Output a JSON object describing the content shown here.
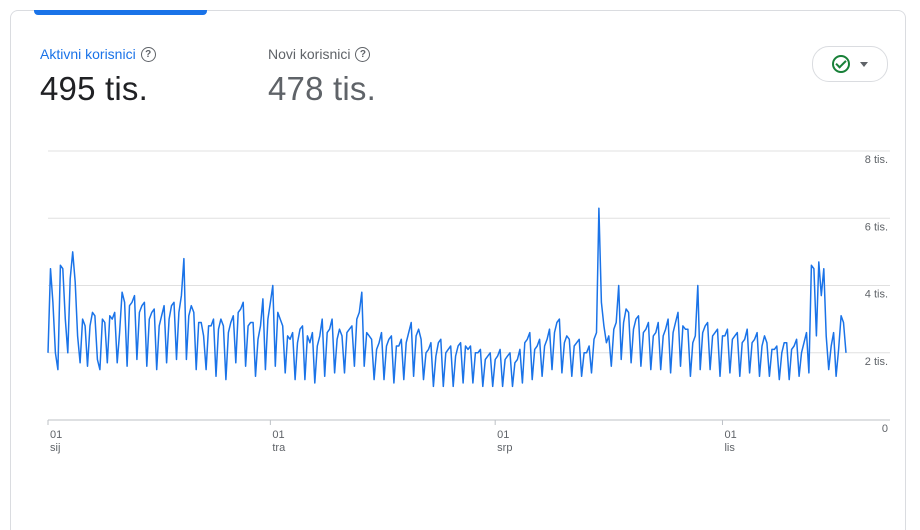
{
  "metrics": {
    "active": {
      "label": "Aktivni korisnici",
      "value": "495 tis."
    },
    "new": {
      "label": "Novi korisnici",
      "value": "478 tis."
    }
  },
  "icons": {
    "help": "help-circle-icon",
    "status": "check-circle-icon",
    "dropdown": "caret-down-icon"
  },
  "colors": {
    "accent": "#1a73e8",
    "status_ok": "#188038",
    "grid": "#e0e0e0"
  },
  "chart_data": {
    "type": "line",
    "ylim": [
      0,
      8000
    ],
    "y_ticks": [
      {
        "value": 8000,
        "label": "8 tis."
      },
      {
        "value": 6000,
        "label": "6 tis."
      },
      {
        "value": 4000,
        "label": "4 tis."
      },
      {
        "value": 2000,
        "label": "2 tis."
      },
      {
        "value": 0,
        "label": "0"
      }
    ],
    "x_ticks": [
      {
        "index": 0,
        "day": "01",
        "month": "sij"
      },
      {
        "index": 90,
        "day": "01",
        "month": "tra"
      },
      {
        "index": 181,
        "day": "01",
        "month": "srp"
      },
      {
        "index": 273,
        "day": "01",
        "month": "lis"
      }
    ],
    "series": [
      {
        "color": "#1a73e8",
        "values": [
          2000,
          4500,
          3500,
          2000,
          1500,
          4600,
          4500,
          3000,
          2000,
          4200,
          5000,
          4100,
          2500,
          1700,
          3000,
          2800,
          1600,
          2800,
          3200,
          3100,
          1800,
          1500,
          3000,
          2900,
          1700,
          3100,
          3000,
          3200,
          1700,
          2600,
          3800,
          3500,
          1600,
          3400,
          3500,
          3700,
          1800,
          3200,
          3400,
          3500,
          1600,
          3000,
          3200,
          3300,
          1500,
          2800,
          3100,
          3400,
          1700,
          3000,
          3400,
          3500,
          1800,
          3200,
          3700,
          4800,
          1800,
          3100,
          3400,
          3200,
          1500,
          2900,
          2900,
          2500,
          1500,
          2800,
          2800,
          3000,
          1300,
          2700,
          3000,
          2800,
          1200,
          2600,
          2900,
          3100,
          1700,
          3200,
          3300,
          3500,
          1600,
          2800,
          2900,
          2900,
          1300,
          2400,
          2800,
          3600,
          1500,
          3000,
          3500,
          4000,
          1600,
          3200,
          3000,
          2800,
          1400,
          2500,
          2400,
          2600,
          1200,
          2300,
          2700,
          2800,
          1200,
          2500,
          2300,
          2600,
          1100,
          2200,
          2500,
          3000,
          1300,
          2600,
          2700,
          3000,
          1400,
          2400,
          2700,
          2500,
          1400,
          2600,
          2700,
          2800,
          1600,
          3000,
          3200,
          3800,
          1600,
          2600,
          2500,
          2400,
          1200,
          2100,
          2300,
          2600,
          1200,
          2200,
          2400,
          2500,
          1100,
          2200,
          2200,
          2400,
          1200,
          2300,
          2600,
          2900,
          1300,
          2500,
          2700,
          2400,
          1200,
          2000,
          2100,
          2300,
          1000,
          1900,
          2300,
          2400,
          1000,
          2000,
          2100,
          2200,
          1000,
          1900,
          2200,
          2300,
          1100,
          2200,
          2100,
          2200,
          1100,
          2000,
          2000,
          2100,
          1000,
          1800,
          1900,
          2000,
          1000,
          1800,
          1900,
          2100,
          1000,
          1800,
          1900,
          2000,
          1000,
          1700,
          1800,
          2100,
          1100,
          2300,
          2400,
          2600,
          1200,
          2100,
          2200,
          2400,
          1300,
          2200,
          2400,
          2700,
          1500,
          2600,
          2900,
          3000,
          1400,
          2300,
          2500,
          2400,
          1300,
          2200,
          2300,
          2400,
          1300,
          2000,
          2000,
          2200,
          1400,
          2400,
          2600,
          6300,
          3500,
          2800,
          2300,
          2500,
          1600,
          2700,
          2900,
          4000,
          1800,
          2900,
          3300,
          3200,
          1700,
          2700,
          3000,
          3100,
          1600,
          2600,
          2700,
          2900,
          1500,
          2500,
          2600,
          2900,
          1500,
          2500,
          2700,
          3000,
          1400,
          2600,
          2900,
          3200,
          1600,
          2800,
          2700,
          2700,
          1300,
          2300,
          2500,
          4000,
          1500,
          2600,
          2800,
          2900,
          1500,
          2500,
          2600,
          2700,
          1300,
          2500,
          2500,
          2700,
          1400,
          2400,
          2500,
          2600,
          1300,
          2300,
          2400,
          2700,
          1400,
          2300,
          2400,
          2600,
          1300,
          2200,
          2500,
          2300,
          1300,
          2100,
          2100,
          2200,
          1200,
          2000,
          2300,
          2300,
          1200,
          2100,
          2200,
          2400,
          1300,
          2000,
          2300,
          2600,
          1400,
          4600,
          4500,
          2500,
          4700,
          3700,
          4500,
          2500,
          1500,
          2200,
          2600,
          1300,
          2100,
          3100,
          2900,
          2000
        ]
      }
    ]
  }
}
